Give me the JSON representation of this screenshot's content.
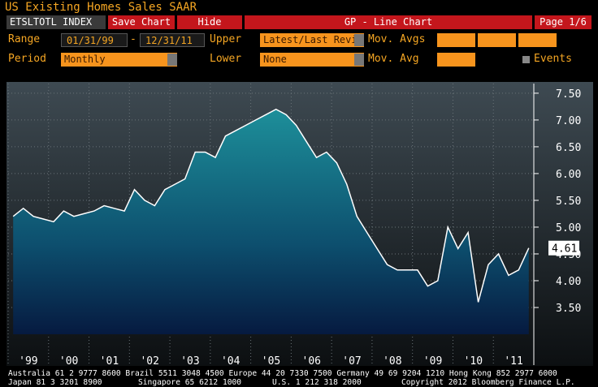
{
  "header": {
    "title": "US Existing Homes Sales SAAR",
    "ticker": "ETSLTOTL INDEX",
    "save": "Save Chart",
    "hide": "Hide",
    "function": "GP - Line Chart",
    "page": "Page 1/6"
  },
  "controls": {
    "range_label": "Range",
    "start": "01/31/99",
    "dash": "-",
    "end": "12/31/11",
    "upper_label": "Upper",
    "upper": "Latest/Last Revi",
    "movavgs_label": "Mov. Avgs",
    "period_label": "Period",
    "period": "Monthly",
    "lower_label": "Lower",
    "lower": "None",
    "movavg_label": "Mov. Avg",
    "events": "Events"
  },
  "chart_data": {
    "type": "area",
    "categories": [
      "'99",
      null,
      null,
      null,
      "'00",
      null,
      null,
      null,
      "'01",
      null,
      null,
      null,
      "'02",
      null,
      null,
      null,
      "'03",
      null,
      null,
      null,
      "'04",
      null,
      null,
      null,
      "'05",
      null,
      null,
      null,
      "'06",
      null,
      null,
      null,
      "'07",
      null,
      null,
      null,
      "'08",
      null,
      null,
      null,
      "'09",
      null,
      null,
      null,
      "'10",
      null,
      null,
      null,
      "'11",
      null,
      null,
      null
    ],
    "values": [
      5.2,
      5.35,
      5.2,
      5.15,
      5.1,
      5.3,
      5.2,
      5.25,
      5.3,
      5.4,
      5.35,
      5.3,
      5.7,
      5.5,
      5.4,
      5.7,
      5.8,
      5.9,
      6.4,
      6.4,
      6.3,
      6.7,
      6.8,
      6.9,
      7.0,
      7.1,
      7.2,
      7.1,
      6.9,
      6.6,
      6.3,
      6.4,
      6.2,
      5.8,
      5.2,
      4.9,
      4.6,
      4.3,
      4.2,
      4.2,
      4.2,
      3.9,
      4.0,
      5.0,
      4.6,
      4.9,
      3.6,
      4.3,
      4.5,
      4.1,
      4.2,
      4.61
    ],
    "last_label": "4.61",
    "ylim": [
      3.0,
      7.68
    ],
    "yticks": [
      {
        "value": 3.5,
        "label": "3.50"
      },
      {
        "value": 4.0,
        "label": "4.00"
      },
      {
        "value": 4.5,
        "label": "4.50"
      },
      {
        "value": 5.0,
        "label": "5.00"
      },
      {
        "value": 5.5,
        "label": "5.50"
      },
      {
        "value": 6.0,
        "label": "6.00"
      },
      {
        "value": 6.5,
        "label": "6.50"
      },
      {
        "value": 7.0,
        "label": "7.00"
      },
      {
        "value": 7.5,
        "label": "7.50"
      }
    ],
    "grid": true,
    "color": "#ffffff"
  },
  "footer": {
    "line1": "Australia 61 2 9777 8600 Brazil 5511 3048 4500 Europe 44 20 7330 7500 Germany 49 69 9204 1210 Hong Kong 852 2977 6000",
    "japan": "Japan 81 3 3201 8900",
    "singapore": "Singapore 65 6212 1000",
    "us": "U.S. 1 212 318 2000",
    "copyright": "Copyright 2012 Bloomberg Finance L.P."
  }
}
